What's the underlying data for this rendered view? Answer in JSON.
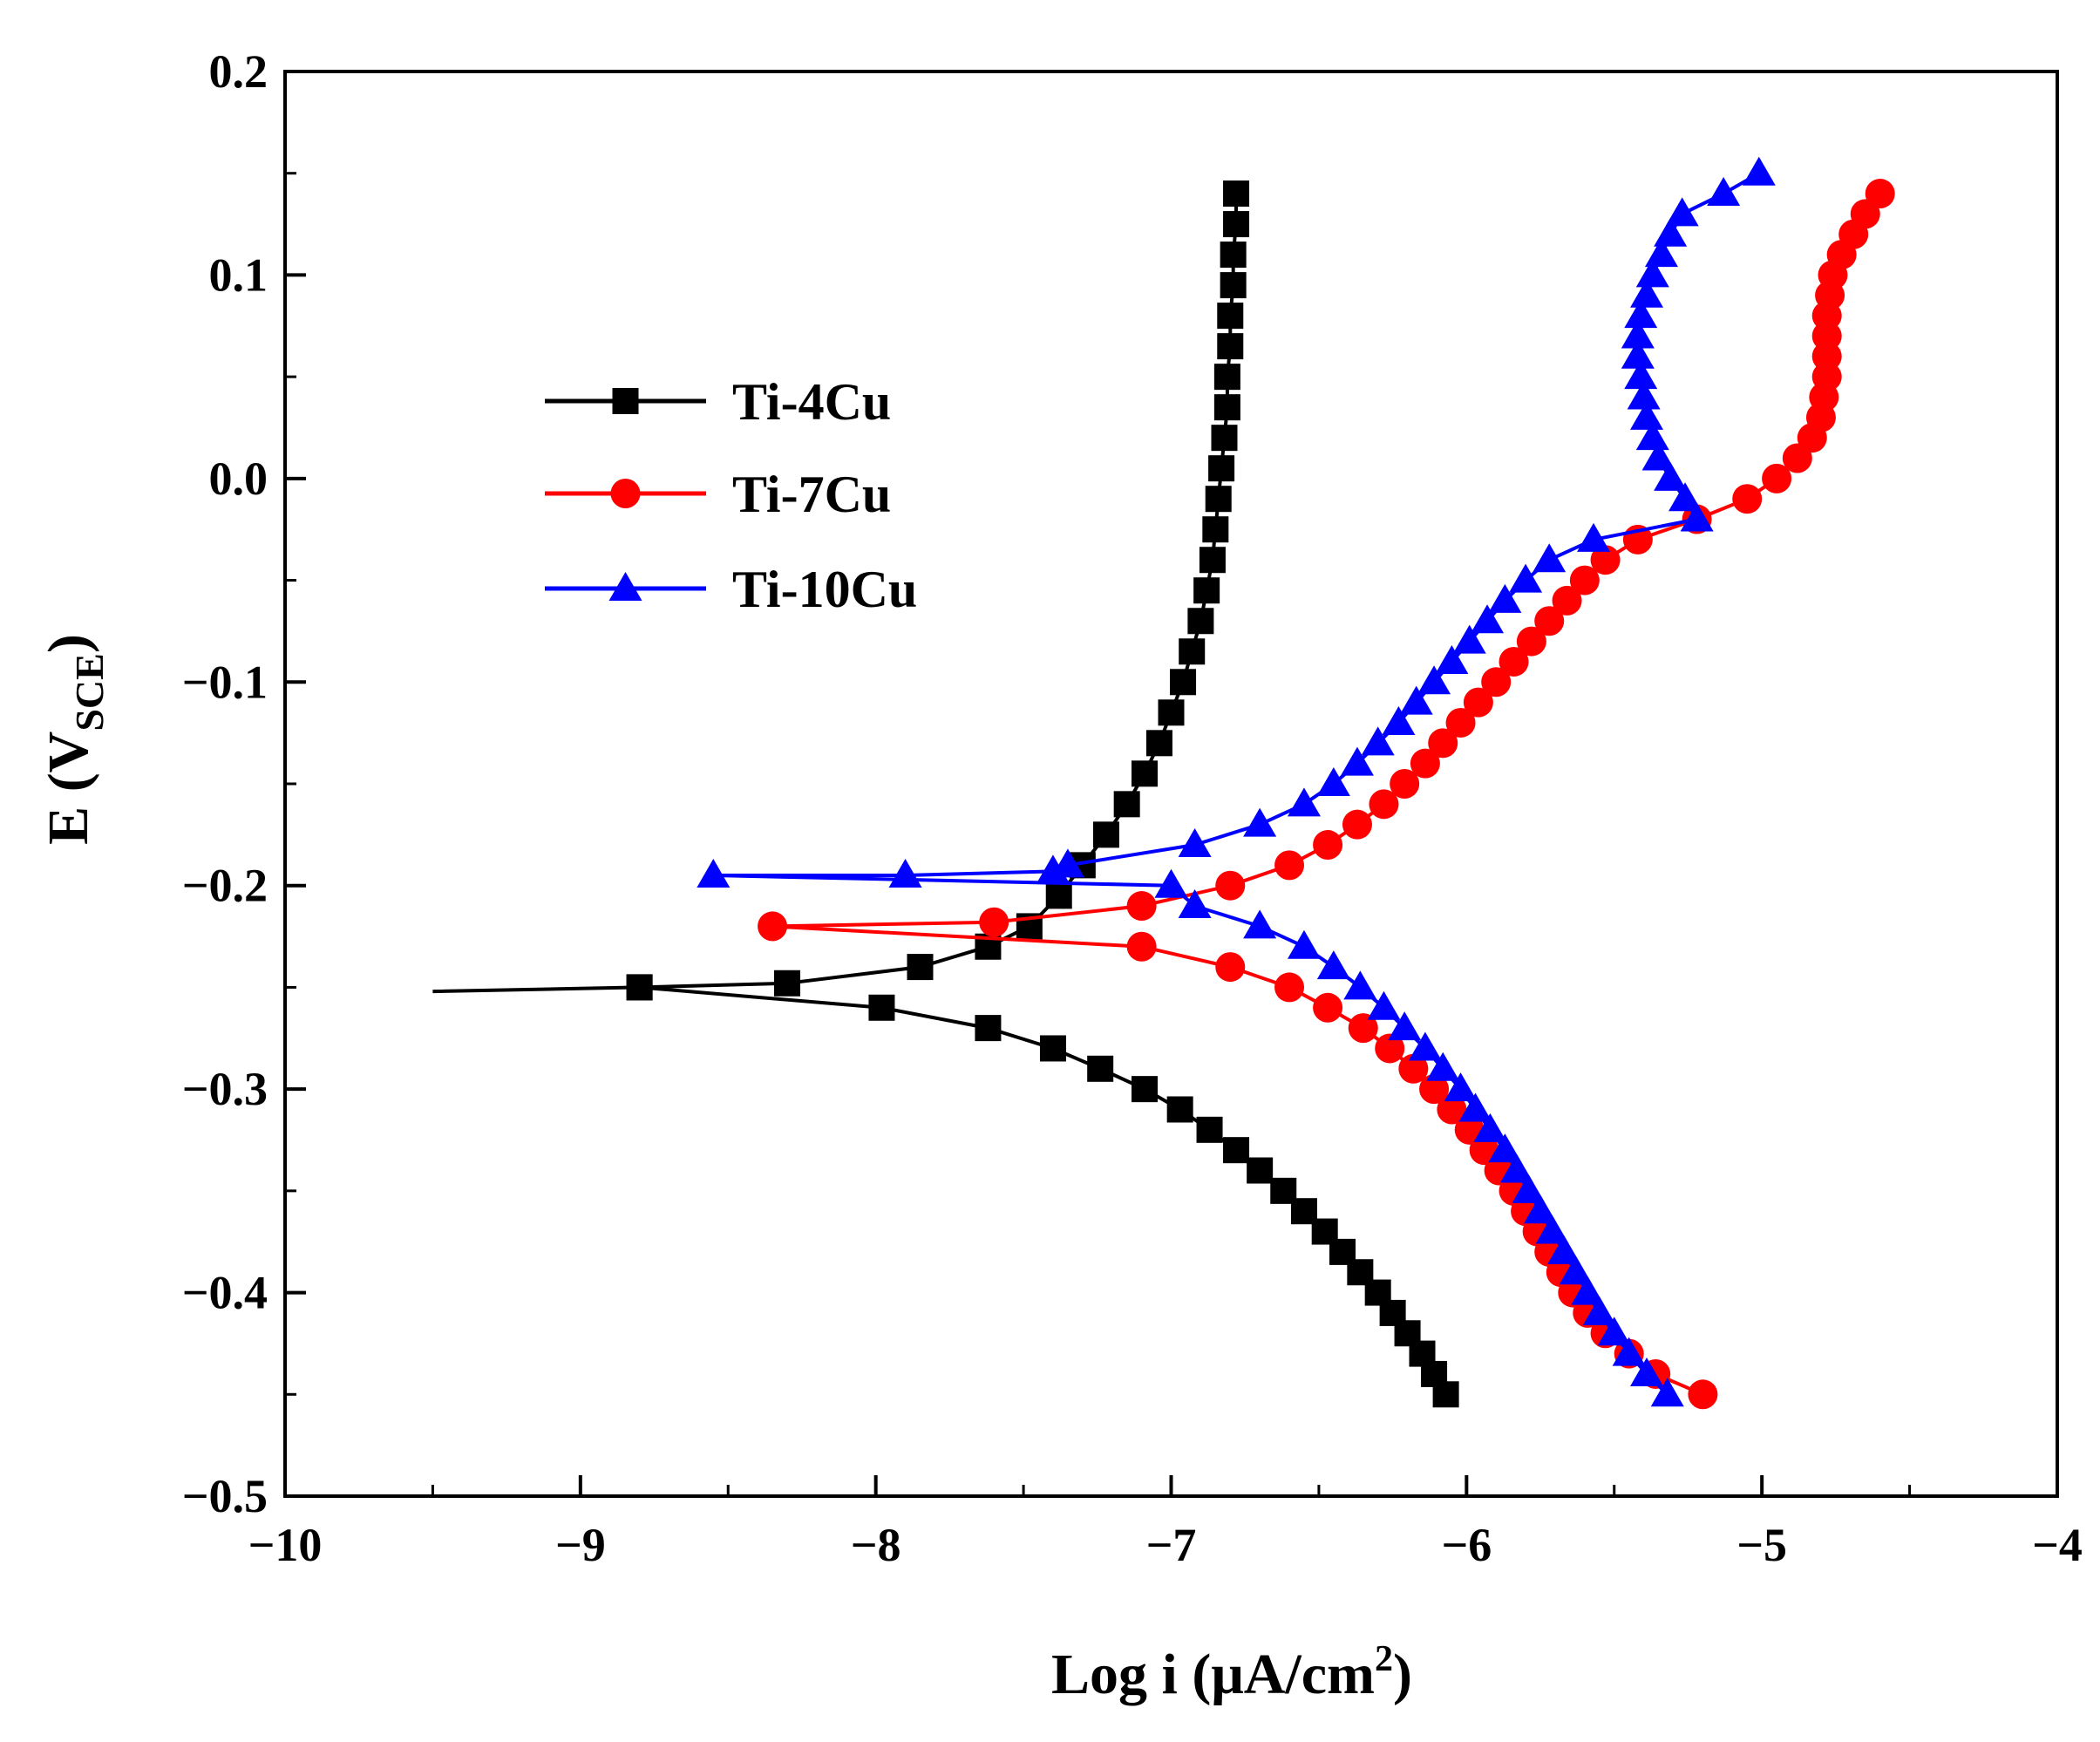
{
  "chart_data": {
    "type": "line",
    "title": "",
    "xlabel_main": "Log i (μA/cm",
    "xlabel_sup": "2",
    "xlabel_tail": ")",
    "ylabel_main": "E (V",
    "ylabel_sub": "SCE",
    "ylabel_tail": ")",
    "xlim": [
      -10,
      -4
    ],
    "ylim": [
      -0.5,
      0.2
    ],
    "x_ticks": [
      -10,
      -9,
      -8,
      -7,
      -6,
      -5,
      -4
    ],
    "x_tick_labels": [
      "−10",
      "−9",
      "−8",
      "−7",
      "−6",
      "−5",
      "−4"
    ],
    "y_ticks": [
      -0.5,
      -0.4,
      -0.3,
      -0.2,
      -0.1,
      0.0,
      0.1,
      0.2
    ],
    "y_tick_labels": [
      "−0.5",
      "−0.4",
      "−0.3",
      "−0.2",
      "−0.1",
      "0.0",
      "0.1",
      "0.2"
    ],
    "grid": false,
    "legend_position": "upper-left",
    "series": [
      {
        "name": "Ti-4Cu",
        "color": "#000000",
        "marker": "square",
        "anodic": [
          {
            "logi": -9.5,
            "E": -0.252
          },
          {
            "logi": -8.8,
            "E": -0.25
          },
          {
            "logi": -8.3,
            "E": -0.248
          },
          {
            "logi": -7.85,
            "E": -0.24
          },
          {
            "logi": -7.62,
            "E": -0.23
          },
          {
            "logi": -7.48,
            "E": -0.22
          },
          {
            "logi": -7.38,
            "E": -0.205
          },
          {
            "logi": -7.3,
            "E": -0.19
          },
          {
            "logi": -7.22,
            "E": -0.175
          },
          {
            "logi": -7.15,
            "E": -0.16
          },
          {
            "logi": -7.09,
            "E": -0.145
          },
          {
            "logi": -7.04,
            "E": -0.13
          },
          {
            "logi": -7.0,
            "E": -0.115
          },
          {
            "logi": -6.96,
            "E": -0.1
          },
          {
            "logi": -6.93,
            "E": -0.085
          },
          {
            "logi": -6.9,
            "E": -0.07
          },
          {
            "logi": -6.88,
            "E": -0.055
          },
          {
            "logi": -6.86,
            "E": -0.04
          },
          {
            "logi": -6.85,
            "E": -0.025
          },
          {
            "logi": -6.84,
            "E": -0.01
          },
          {
            "logi": -6.83,
            "E": 0.005
          },
          {
            "logi": -6.82,
            "E": 0.02
          },
          {
            "logi": -6.81,
            "E": 0.035
          },
          {
            "logi": -6.81,
            "E": 0.05
          },
          {
            "logi": -6.8,
            "E": 0.065
          },
          {
            "logi": -6.8,
            "E": 0.08
          },
          {
            "logi": -6.79,
            "E": 0.095
          },
          {
            "logi": -6.79,
            "E": 0.11
          },
          {
            "logi": -6.78,
            "E": 0.125
          },
          {
            "logi": -6.78,
            "E": 0.14
          }
        ],
        "cathodic": [
          {
            "logi": -8.8,
            "E": -0.25
          },
          {
            "logi": -7.98,
            "E": -0.26
          },
          {
            "logi": -7.62,
            "E": -0.27
          },
          {
            "logi": -7.4,
            "E": -0.28
          },
          {
            "logi": -7.24,
            "E": -0.29
          },
          {
            "logi": -7.09,
            "E": -0.3
          },
          {
            "logi": -6.97,
            "E": -0.31
          },
          {
            "logi": -6.87,
            "E": -0.32
          },
          {
            "logi": -6.78,
            "E": -0.33
          },
          {
            "logi": -6.7,
            "E": -0.34
          },
          {
            "logi": -6.62,
            "E": -0.35
          },
          {
            "logi": -6.55,
            "E": -0.36
          },
          {
            "logi": -6.48,
            "E": -0.37
          },
          {
            "logi": -6.42,
            "E": -0.38
          },
          {
            "logi": -6.36,
            "E": -0.39
          },
          {
            "logi": -6.3,
            "E": -0.4
          },
          {
            "logi": -6.25,
            "E": -0.41
          },
          {
            "logi": -6.2,
            "E": -0.42
          },
          {
            "logi": -6.15,
            "E": -0.43
          },
          {
            "logi": -6.11,
            "E": -0.44
          },
          {
            "logi": -6.07,
            "E": -0.45
          }
        ]
      },
      {
        "name": "Ti-7Cu",
        "color": "#ff0000",
        "marker": "circle",
        "anodic": [
          {
            "logi": -8.35,
            "E": -0.22
          },
          {
            "logi": -7.6,
            "E": -0.218
          },
          {
            "logi": -7.1,
            "E": -0.21
          },
          {
            "logi": -6.8,
            "E": -0.2
          },
          {
            "logi": -6.6,
            "E": -0.19
          },
          {
            "logi": -6.47,
            "E": -0.18
          },
          {
            "logi": -6.37,
            "E": -0.17
          },
          {
            "logi": -6.28,
            "E": -0.16
          },
          {
            "logi": -6.21,
            "E": -0.15
          },
          {
            "logi": -6.14,
            "E": -0.14
          },
          {
            "logi": -6.08,
            "E": -0.13
          },
          {
            "logi": -6.02,
            "E": -0.12
          },
          {
            "logi": -5.96,
            "E": -0.11
          },
          {
            "logi": -5.9,
            "E": -0.1
          },
          {
            "logi": -5.84,
            "E": -0.09
          },
          {
            "logi": -5.78,
            "E": -0.08
          },
          {
            "logi": -5.72,
            "E": -0.07
          },
          {
            "logi": -5.66,
            "E": -0.06
          },
          {
            "logi": -5.6,
            "E": -0.05
          },
          {
            "logi": -5.53,
            "E": -0.04
          },
          {
            "logi": -5.42,
            "E": -0.03
          },
          {
            "logi": -5.22,
            "E": -0.02
          },
          {
            "logi": -5.05,
            "E": -0.01
          },
          {
            "logi": -4.95,
            "E": 0.0
          },
          {
            "logi": -4.88,
            "E": 0.01
          },
          {
            "logi": -4.83,
            "E": 0.02
          },
          {
            "logi": -4.8,
            "E": 0.03
          },
          {
            "logi": -4.79,
            "E": 0.04
          },
          {
            "logi": -4.78,
            "E": 0.05
          },
          {
            "logi": -4.78,
            "E": 0.06
          },
          {
            "logi": -4.78,
            "E": 0.07
          },
          {
            "logi": -4.78,
            "E": 0.08
          },
          {
            "logi": -4.77,
            "E": 0.09
          },
          {
            "logi": -4.76,
            "E": 0.1
          },
          {
            "logi": -4.73,
            "E": 0.11
          },
          {
            "logi": -4.69,
            "E": 0.12
          },
          {
            "logi": -4.65,
            "E": 0.13
          },
          {
            "logi": -4.6,
            "E": 0.14
          }
        ],
        "cathodic": [
          {
            "logi": -8.35,
            "E": -0.22
          },
          {
            "logi": -7.1,
            "E": -0.23
          },
          {
            "logi": -6.8,
            "E": -0.24
          },
          {
            "logi": -6.6,
            "E": -0.25
          },
          {
            "logi": -6.47,
            "E": -0.26
          },
          {
            "logi": -6.35,
            "E": -0.27
          },
          {
            "logi": -6.26,
            "E": -0.28
          },
          {
            "logi": -6.18,
            "E": -0.29
          },
          {
            "logi": -6.11,
            "E": -0.3
          },
          {
            "logi": -6.05,
            "E": -0.31
          },
          {
            "logi": -5.99,
            "E": -0.32
          },
          {
            "logi": -5.94,
            "E": -0.33
          },
          {
            "logi": -5.89,
            "E": -0.34
          },
          {
            "logi": -5.84,
            "E": -0.35
          },
          {
            "logi": -5.8,
            "E": -0.36
          },
          {
            "logi": -5.76,
            "E": -0.37
          },
          {
            "logi": -5.72,
            "E": -0.38
          },
          {
            "logi": -5.68,
            "E": -0.39
          },
          {
            "logi": -5.64,
            "E": -0.4
          },
          {
            "logi": -5.59,
            "E": -0.41
          },
          {
            "logi": -5.53,
            "E": -0.42
          },
          {
            "logi": -5.45,
            "E": -0.43
          },
          {
            "logi": -5.36,
            "E": -0.44
          },
          {
            "logi": -5.2,
            "E": -0.45
          }
        ]
      },
      {
        "name": "Ti-10Cu",
        "color": "#0000ff",
        "marker": "triangle",
        "anodic": [
          {
            "logi": -8.55,
            "E": -0.195
          },
          {
            "logi": -7.9,
            "E": -0.195
          },
          {
            "logi": -7.4,
            "E": -0.193
          },
          {
            "logi": -7.35,
            "E": -0.19
          },
          {
            "logi": -6.92,
            "E": -0.18
          },
          {
            "logi": -6.7,
            "E": -0.17
          },
          {
            "logi": -6.55,
            "E": -0.16
          },
          {
            "logi": -6.45,
            "E": -0.15
          },
          {
            "logi": -6.37,
            "E": -0.14
          },
          {
            "logi": -6.3,
            "E": -0.13
          },
          {
            "logi": -6.23,
            "E": -0.12
          },
          {
            "logi": -6.17,
            "E": -0.11
          },
          {
            "logi": -6.11,
            "E": -0.1
          },
          {
            "logi": -6.05,
            "E": -0.09
          },
          {
            "logi": -5.99,
            "E": -0.08
          },
          {
            "logi": -5.93,
            "E": -0.07
          },
          {
            "logi": -5.87,
            "E": -0.06
          },
          {
            "logi": -5.8,
            "E": -0.05
          },
          {
            "logi": -5.72,
            "E": -0.04
          },
          {
            "logi": -5.57,
            "E": -0.03
          },
          {
            "logi": -5.22,
            "E": -0.02
          },
          {
            "logi": -5.26,
            "E": -0.01
          },
          {
            "logi": -5.31,
            "E": 0.0
          },
          {
            "logi": -5.35,
            "E": 0.01
          },
          {
            "logi": -5.37,
            "E": 0.02
          },
          {
            "logi": -5.39,
            "E": 0.03
          },
          {
            "logi": -5.4,
            "E": 0.04
          },
          {
            "logi": -5.41,
            "E": 0.05
          },
          {
            "logi": -5.42,
            "E": 0.06
          },
          {
            "logi": -5.42,
            "E": 0.07
          },
          {
            "logi": -5.41,
            "E": 0.08
          },
          {
            "logi": -5.39,
            "E": 0.09
          },
          {
            "logi": -5.37,
            "E": 0.1
          },
          {
            "logi": -5.34,
            "E": 0.11
          },
          {
            "logi": -5.31,
            "E": 0.12
          },
          {
            "logi": -5.27,
            "E": 0.13
          },
          {
            "logi": -5.13,
            "E": 0.14
          },
          {
            "logi": -5.01,
            "E": 0.15
          }
        ],
        "cathodic": [
          {
            "logi": -8.55,
            "E": -0.195
          },
          {
            "logi": -7.0,
            "E": -0.2
          },
          {
            "logi": -6.92,
            "E": -0.21
          },
          {
            "logi": -6.7,
            "E": -0.22
          },
          {
            "logi": -6.55,
            "E": -0.23
          },
          {
            "logi": -6.45,
            "E": -0.24
          },
          {
            "logi": -6.36,
            "E": -0.25
          },
          {
            "logi": -6.28,
            "E": -0.26
          },
          {
            "logi": -6.21,
            "E": -0.27
          },
          {
            "logi": -6.14,
            "E": -0.28
          },
          {
            "logi": -6.08,
            "E": -0.29
          },
          {
            "logi": -6.02,
            "E": -0.3
          },
          {
            "logi": -5.97,
            "E": -0.31
          },
          {
            "logi": -5.92,
            "E": -0.32
          },
          {
            "logi": -5.87,
            "E": -0.33
          },
          {
            "logi": -5.83,
            "E": -0.34
          },
          {
            "logi": -5.79,
            "E": -0.35
          },
          {
            "logi": -5.75,
            "E": -0.36
          },
          {
            "logi": -5.71,
            "E": -0.37
          },
          {
            "logi": -5.67,
            "E": -0.38
          },
          {
            "logi": -5.63,
            "E": -0.39
          },
          {
            "logi": -5.59,
            "E": -0.4
          },
          {
            "logi": -5.55,
            "E": -0.41
          },
          {
            "logi": -5.5,
            "E": -0.42
          },
          {
            "logi": -5.45,
            "E": -0.43
          },
          {
            "logi": -5.39,
            "E": -0.44
          },
          {
            "logi": -5.32,
            "E": -0.45
          }
        ]
      }
    ]
  }
}
